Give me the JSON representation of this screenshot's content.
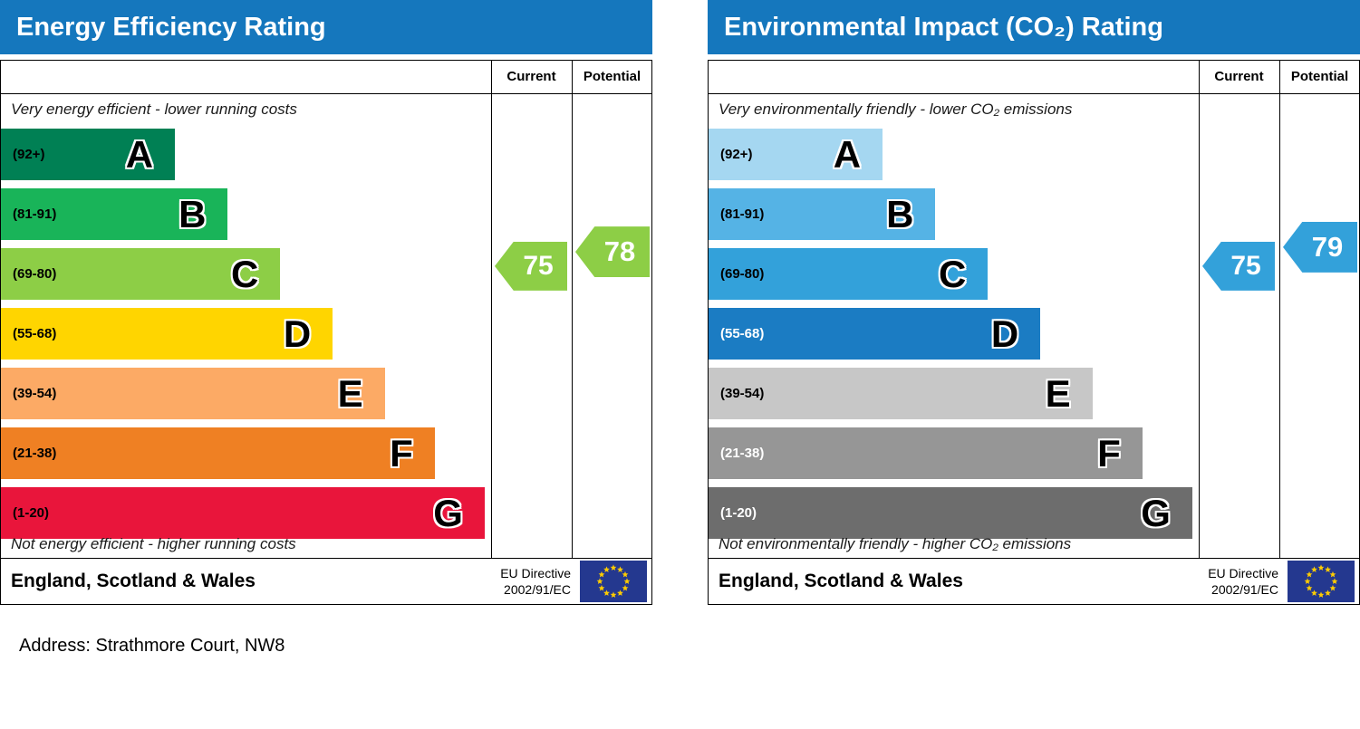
{
  "address_line": "Address: Strathmore Court, NW8",
  "colors": {
    "header_bg": "#1577bd",
    "flag_bg": "#24388f",
    "flag_star": "#ffcc00"
  },
  "chart_data": [
    {
      "type": "bar",
      "title": "Energy Efficiency Rating",
      "columns": {
        "current": "Current",
        "potential": "Potential"
      },
      "top_note": "Very energy efficient - lower running costs",
      "bottom_note": "Not energy efficient - higher running costs",
      "footer": {
        "region": "England, Scotland & Wales",
        "directive_line1": "EU Directive",
        "directive_line2": "2002/91/EC",
        "flag": "eu-flag"
      },
      "current": {
        "value": 75,
        "band": "C",
        "color": "#8dce46"
      },
      "potential": {
        "value": 78,
        "band": "C",
        "color": "#8dce46"
      },
      "bands": [
        {
          "letter": "A",
          "range_label": "(92+)",
          "lo": 92,
          "hi": 100,
          "color": "#008054",
          "width_pct": 35.5,
          "label_color": "#000000"
        },
        {
          "letter": "B",
          "range_label": "(81-91)",
          "lo": 81,
          "hi": 91,
          "color": "#19b459",
          "width_pct": 46.3,
          "label_color": "#000000"
        },
        {
          "letter": "C",
          "range_label": "(69-80)",
          "lo": 69,
          "hi": 80,
          "color": "#8dce46",
          "width_pct": 57.0,
          "label_color": "#000000"
        },
        {
          "letter": "D",
          "range_label": "(55-68)",
          "lo": 55,
          "hi": 68,
          "color": "#ffd500",
          "width_pct": 67.7,
          "label_color": "#000000"
        },
        {
          "letter": "E",
          "range_label": "(39-54)",
          "lo": 39,
          "hi": 54,
          "color": "#fcaa65",
          "width_pct": 78.3,
          "label_color": "#000000"
        },
        {
          "letter": "F",
          "range_label": "(21-38)",
          "lo": 21,
          "hi": 38,
          "color": "#ef8023",
          "width_pct": 88.5,
          "label_color": "#000000"
        },
        {
          "letter": "G",
          "range_label": "(1-20)",
          "lo": 1,
          "hi": 20,
          "color": "#e9153b",
          "width_pct": 98.7,
          "label_color": "#000000"
        }
      ]
    },
    {
      "type": "bar",
      "title": "Environmental Impact (CO₂) Rating",
      "columns": {
        "current": "Current",
        "potential": "Potential"
      },
      "top_note": "Very environmentally friendly - lower CO₂ emissions",
      "bottom_note": "Not environmentally friendly - higher CO₂ emissions",
      "footer": {
        "region": "England, Scotland & Wales",
        "directive_line1": "EU Directive",
        "directive_line2": "2002/91/EC",
        "flag": "eu-flag"
      },
      "current": {
        "value": 75,
        "band": "C",
        "color": "#33a1da"
      },
      "potential": {
        "value": 79,
        "band": "C",
        "color": "#33a1da"
      },
      "bands": [
        {
          "letter": "A",
          "range_label": "(92+)",
          "lo": 92,
          "hi": 100,
          "color": "#a5d7f1",
          "width_pct": 35.5,
          "label_color": "#000000"
        },
        {
          "letter": "B",
          "range_label": "(81-91)",
          "lo": 81,
          "hi": 91,
          "color": "#55b3e5",
          "width_pct": 46.3,
          "label_color": "#000000"
        },
        {
          "letter": "C",
          "range_label": "(69-80)",
          "lo": 69,
          "hi": 80,
          "color": "#33a1da",
          "width_pct": 57.0,
          "label_color": "#000000"
        },
        {
          "letter": "D",
          "range_label": "(55-68)",
          "lo": 55,
          "hi": 68,
          "color": "#1b7cc3",
          "width_pct": 67.7,
          "label_color": "#ffffff"
        },
        {
          "letter": "E",
          "range_label": "(39-54)",
          "lo": 39,
          "hi": 54,
          "color": "#c7c7c7",
          "width_pct": 78.3,
          "label_color": "#000000"
        },
        {
          "letter": "F",
          "range_label": "(21-38)",
          "lo": 21,
          "hi": 38,
          "color": "#969696",
          "width_pct": 88.5,
          "label_color": "#ffffff"
        },
        {
          "letter": "G",
          "range_label": "(1-20)",
          "lo": 1,
          "hi": 20,
          "color": "#6d6d6d",
          "width_pct": 98.7,
          "label_color": "#ffffff"
        }
      ]
    }
  ]
}
